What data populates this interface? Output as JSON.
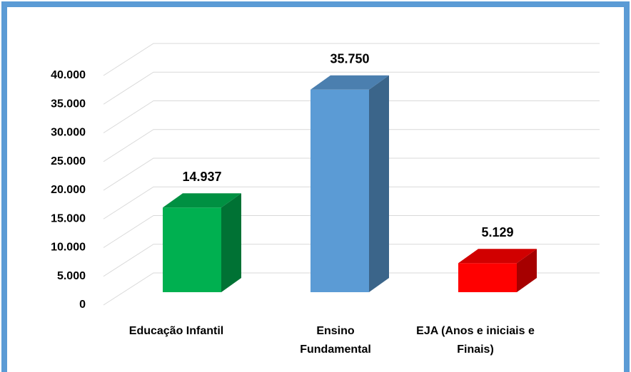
{
  "chart_data": {
    "type": "bar3d",
    "categories": [
      "Educação Infantil",
      "Ensino Fundamental",
      "EJA (Anos e iniciais e Finais)"
    ],
    "values": [
      14937,
      35750,
      5129
    ],
    "value_labels": [
      "14.937",
      "35.750",
      "5.129"
    ],
    "colors": [
      "#00b050",
      "#5b9bd5",
      "#ff0000"
    ],
    "ylim": [
      0,
      40000
    ],
    "yticks": [
      0,
      {
        "value": 5000,
        "label": "5.000"
      },
      {
        "value": 10000,
        "label": "10.000"
      },
      {
        "value": 15000,
        "label": "15.000"
      },
      {
        "value": 20000,
        "label": "20.000"
      },
      {
        "value": 25000,
        "label": "25.000"
      },
      {
        "value": 30000,
        "label": "30.000"
      },
      {
        "value": 35000,
        "label": "35.000"
      },
      {
        "value": 40000,
        "label": "40.000"
      }
    ],
    "grid": true
  }
}
